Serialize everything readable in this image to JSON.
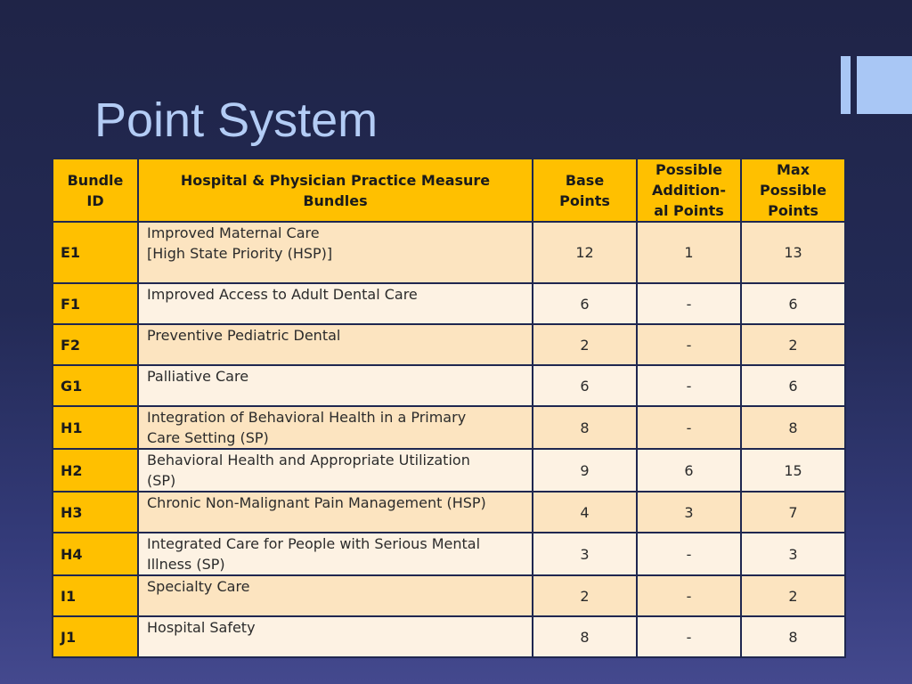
{
  "slide": {
    "title": "Point System"
  },
  "table": {
    "headers": {
      "bundle_id": "Bundle ID",
      "bundles": "Hospital & Physician Practice Measure Bundles",
      "base": "Base Points",
      "additional": "Possible Addition- al Points",
      "max": "Max Possible Points"
    },
    "header_lines": {
      "bundle_id": [
        "Bundle",
        "ID"
      ],
      "bundles": [
        "Hospital & Physician Practice Measure",
        "Bundles"
      ],
      "base": [
        "Base",
        "Points"
      ],
      "additional": [
        "Possible",
        "Addition-",
        "al Points"
      ],
      "max": [
        "Max",
        "Possible",
        "Points"
      ]
    },
    "rows": [
      {
        "id": "E1",
        "desc_lines": [
          "Improved Maternal Care",
          "[High State Priority (HSP)]"
        ],
        "base": "12",
        "additional": "1",
        "max": "13"
      },
      {
        "id": "F1",
        "desc_lines": [
          "Improved Access to Adult Dental Care"
        ],
        "base": "6",
        "additional": "-",
        "max": "6"
      },
      {
        "id": "F2",
        "desc_lines": [
          "Preventive Pediatric Dental"
        ],
        "base": "2",
        "additional": "-",
        "max": "2"
      },
      {
        "id": "G1",
        "desc_lines": [
          "Palliative Care"
        ],
        "base": "6",
        "additional": "-",
        "max": "6"
      },
      {
        "id": "H1",
        "desc_lines": [
          "Integration of Behavioral Health in a Primary",
          "Care Setting (SP)"
        ],
        "base": "8",
        "additional": "-",
        "max": "8"
      },
      {
        "id": "H2",
        "desc_lines": [
          "Behavioral Health and Appropriate Utilization",
          "(SP)"
        ],
        "base": "9",
        "additional": "6",
        "max": "15"
      },
      {
        "id": "H3",
        "desc_lines": [
          "Chronic Non-Malignant Pain Management (HSP)"
        ],
        "base": "4",
        "additional": "3",
        "max": "7"
      },
      {
        "id": "H4",
        "desc_lines": [
          "Integrated Care for People with Serious Mental",
          "Illness (SP)"
        ],
        "base": "3",
        "additional": "-",
        "max": "3"
      },
      {
        "id": "I1",
        "desc_lines": [
          "Specialty Care"
        ],
        "base": "2",
        "additional": "-",
        "max": "2"
      },
      {
        "id": "J1",
        "desc_lines": [
          "Hospital Safety"
        ],
        "base": "8",
        "additional": "-",
        "max": "8"
      }
    ]
  },
  "colors": {
    "header_bg": "#ffc000",
    "row_alt_a": "#fce4c0",
    "row_alt_b": "#fdf2e3",
    "title_text": "#b3ccf5",
    "accent_bars": "#a9c7f5"
  }
}
